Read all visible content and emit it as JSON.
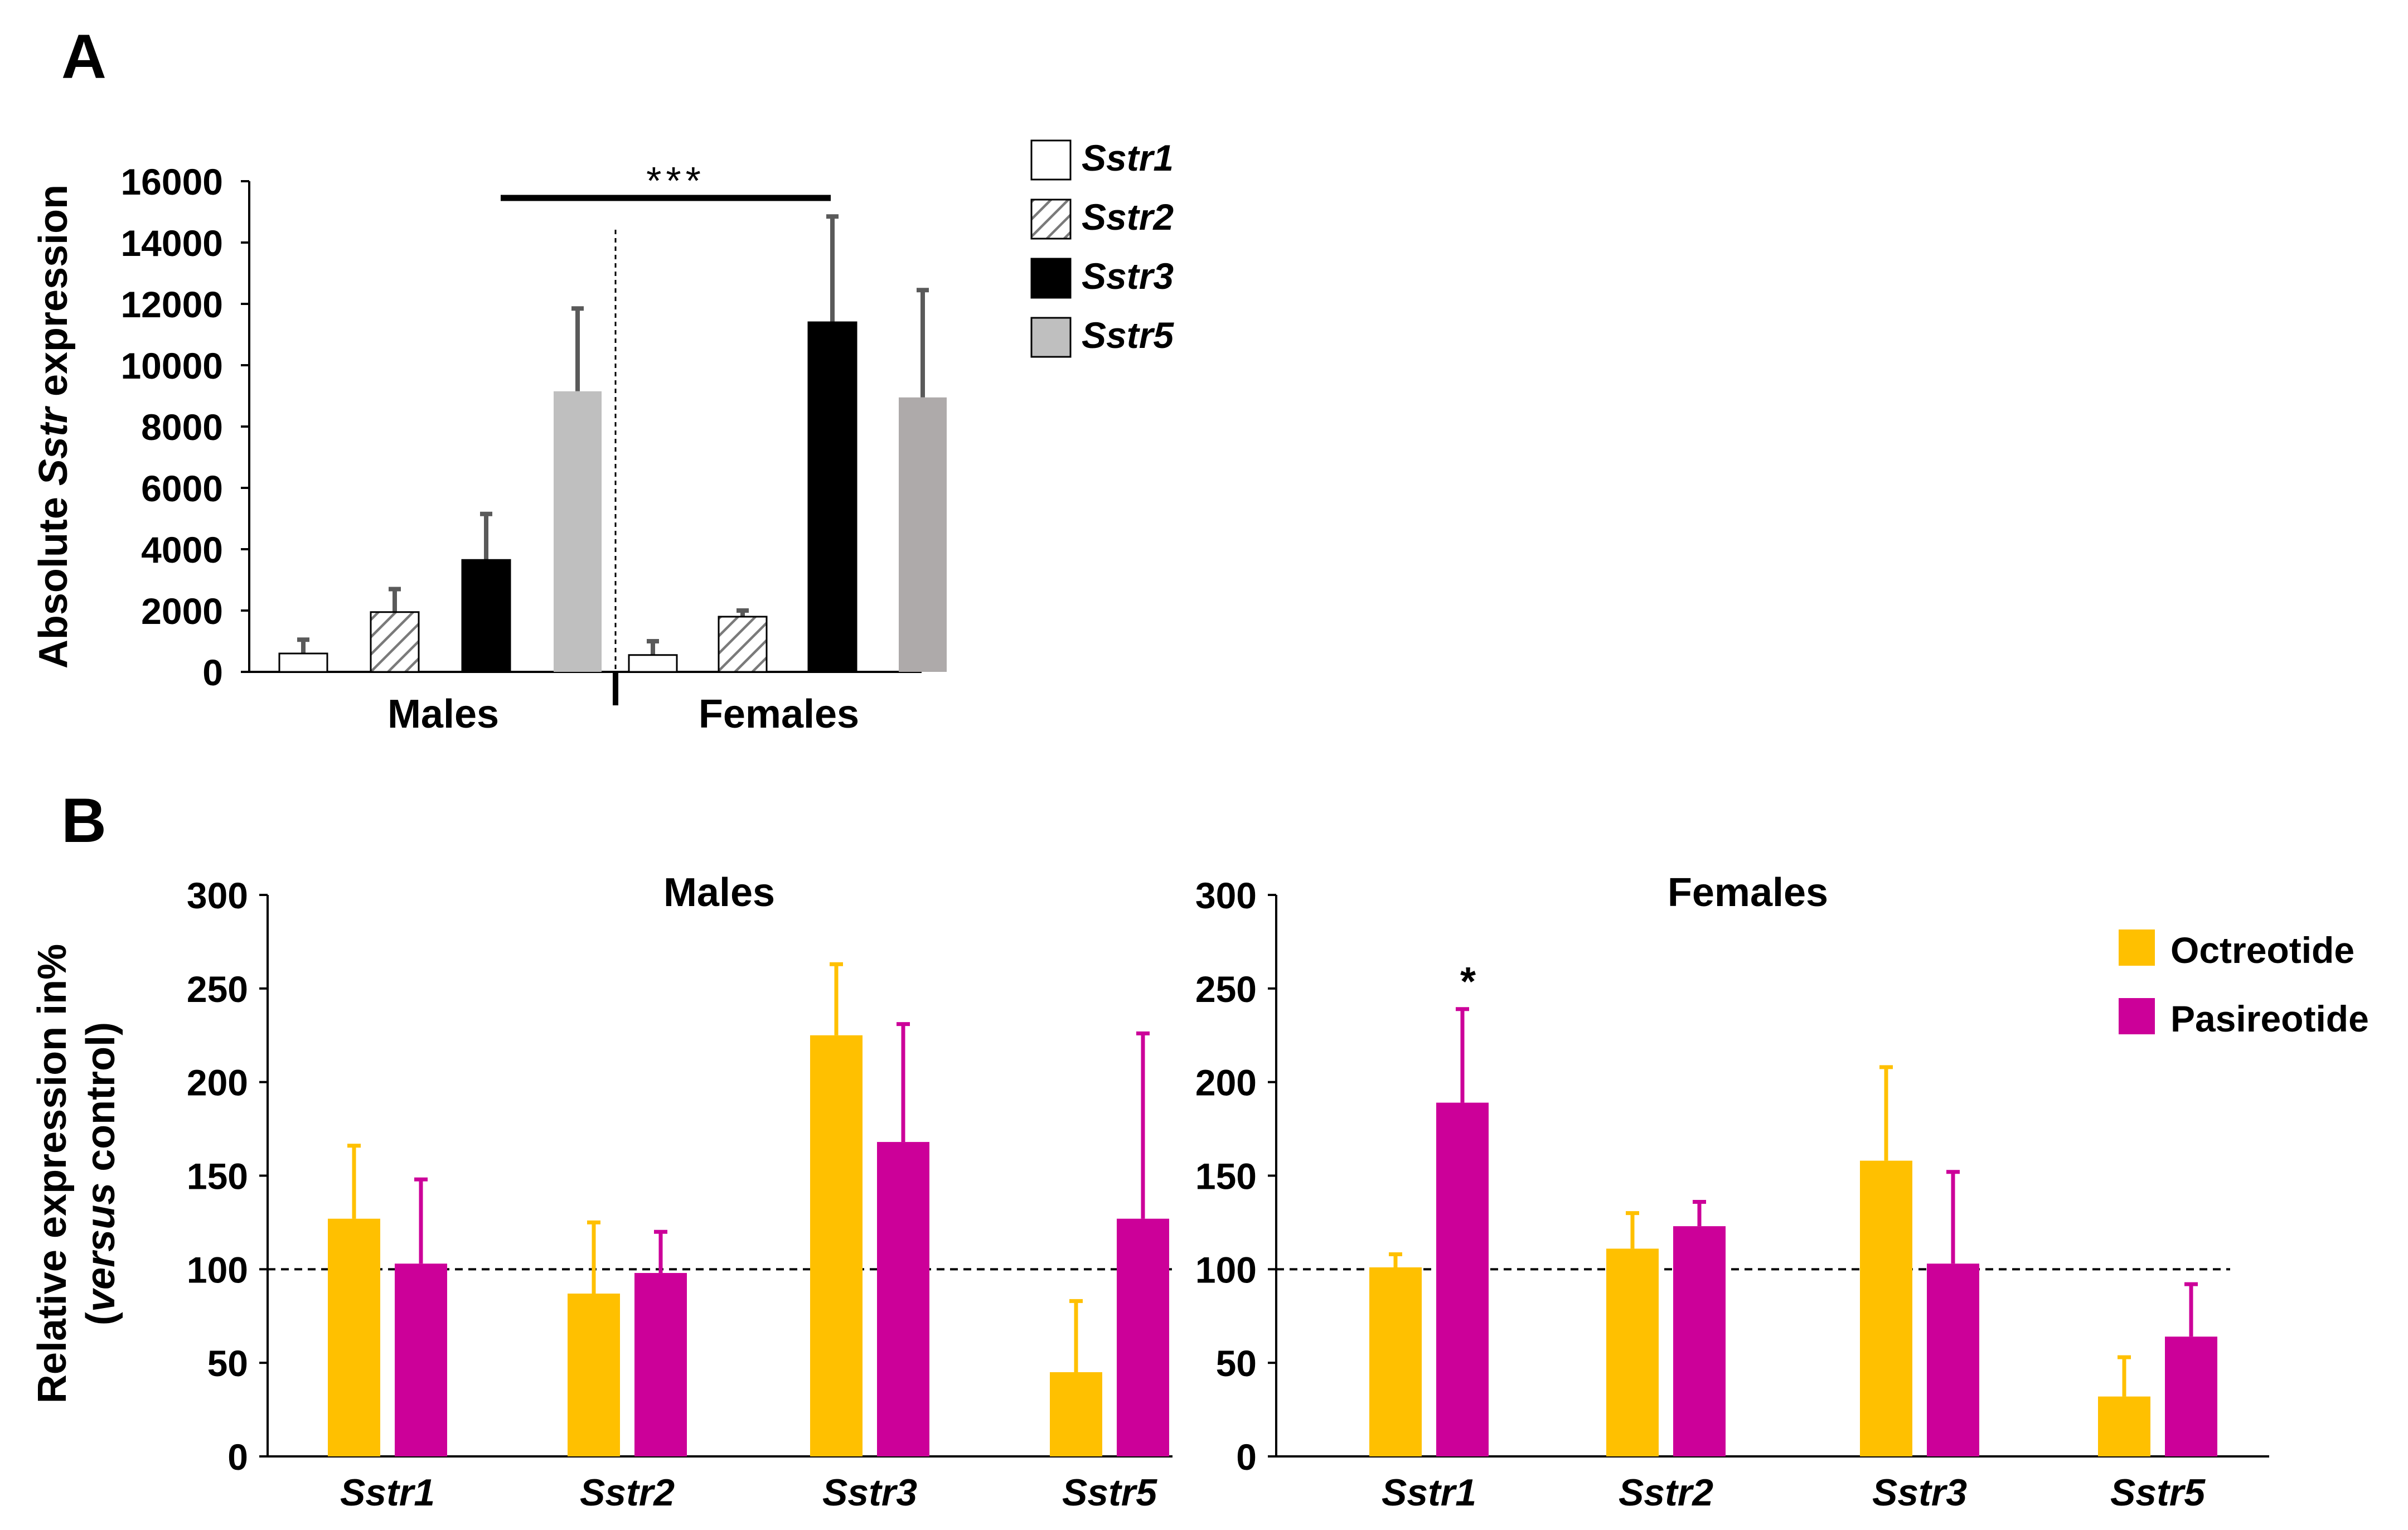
{
  "panel_labels": {
    "a": "A",
    "b": "B"
  },
  "colors": {
    "sstr1": "#ffffff",
    "sstr2_line": "#7a7a7a",
    "sstr3": "#000000",
    "males_sstr5": "#bfbfbf",
    "females_sstr5": "#aeaaaa",
    "error_bar_a": "#5a5a5a",
    "octreotide": "#ffc000",
    "pasireotide": "#cc0099"
  },
  "chart_data": [
    {
      "id": "A",
      "type": "bar",
      "ylabel_prefix": "Absolute ",
      "ylabel_italic": "Sstr",
      "ylabel_suffix": " expression",
      "ylim": [
        0,
        16000
      ],
      "yticks": [
        "0",
        "2000",
        "4000",
        "6000",
        "8000",
        "10000",
        "12000",
        "14000",
        "16000"
      ],
      "groups": [
        "Males",
        "Females"
      ],
      "series": [
        {
          "name": "Sstr1",
          "values": [
            600,
            550
          ],
          "errors": [
            450,
            450
          ]
        },
        {
          "name": "Sstr2",
          "values": [
            1950,
            1800
          ],
          "errors": [
            750,
            200
          ]
        },
        {
          "name": "Sstr3",
          "values": [
            3650,
            11400
          ],
          "errors": [
            1500,
            3450
          ]
        },
        {
          "name": "Sstr5",
          "values": [
            9150,
            8950
          ],
          "errors": [
            2700,
            3500
          ]
        }
      ],
      "annotation": {
        "text": "***",
        "between": "Sstr3 (Males) vs Sstr3 (Females)"
      }
    },
    {
      "id": "B-males",
      "type": "bar",
      "title": "Males",
      "ylabel_line1": "Relative expression in%",
      "ylabel_line2_italic": "versus",
      "ylabel_line2_rest": " control)",
      "ylabel_line2_open": "(",
      "ylim": [
        0,
        300
      ],
      "yticks": [
        "0",
        "50",
        "100",
        "150",
        "200",
        "250",
        "300"
      ],
      "categories": [
        "Sstr1",
        "Sstr2",
        "Sstr3",
        "Sstr5"
      ],
      "reference_line": 100,
      "series": [
        {
          "name": "Octreotide",
          "values": [
            127,
            87,
            225,
            45
          ],
          "errors": [
            39,
            38,
            38,
            38
          ]
        },
        {
          "name": "Pasireotide",
          "values": [
            103,
            98,
            168,
            127
          ],
          "errors": [
            45,
            22,
            63,
            99
          ]
        }
      ]
    },
    {
      "id": "B-females",
      "type": "bar",
      "title": "Females",
      "ylim": [
        0,
        300
      ],
      "yticks": [
        "0",
        "50",
        "100",
        "150",
        "200",
        "250",
        "300"
      ],
      "categories": [
        "Sstr1",
        "Sstr2",
        "Sstr3",
        "Sstr5"
      ],
      "reference_line": 100,
      "series": [
        {
          "name": "Octreotide",
          "values": [
            101,
            111,
            158,
            32
          ],
          "errors": [
            7,
            19,
            50,
            21
          ]
        },
        {
          "name": "Pasireotide",
          "values": [
            189,
            123,
            103,
            64
          ],
          "errors": [
            50,
            13,
            49,
            28
          ]
        }
      ],
      "annotation": {
        "text": "*",
        "category": "Sstr1",
        "series": "Pasireotide"
      }
    }
  ],
  "legend_a": [
    "Sstr1",
    "Sstr2",
    "Sstr3",
    "Sstr5"
  ],
  "legend_b": [
    "Octreotide",
    "Pasireotide"
  ]
}
